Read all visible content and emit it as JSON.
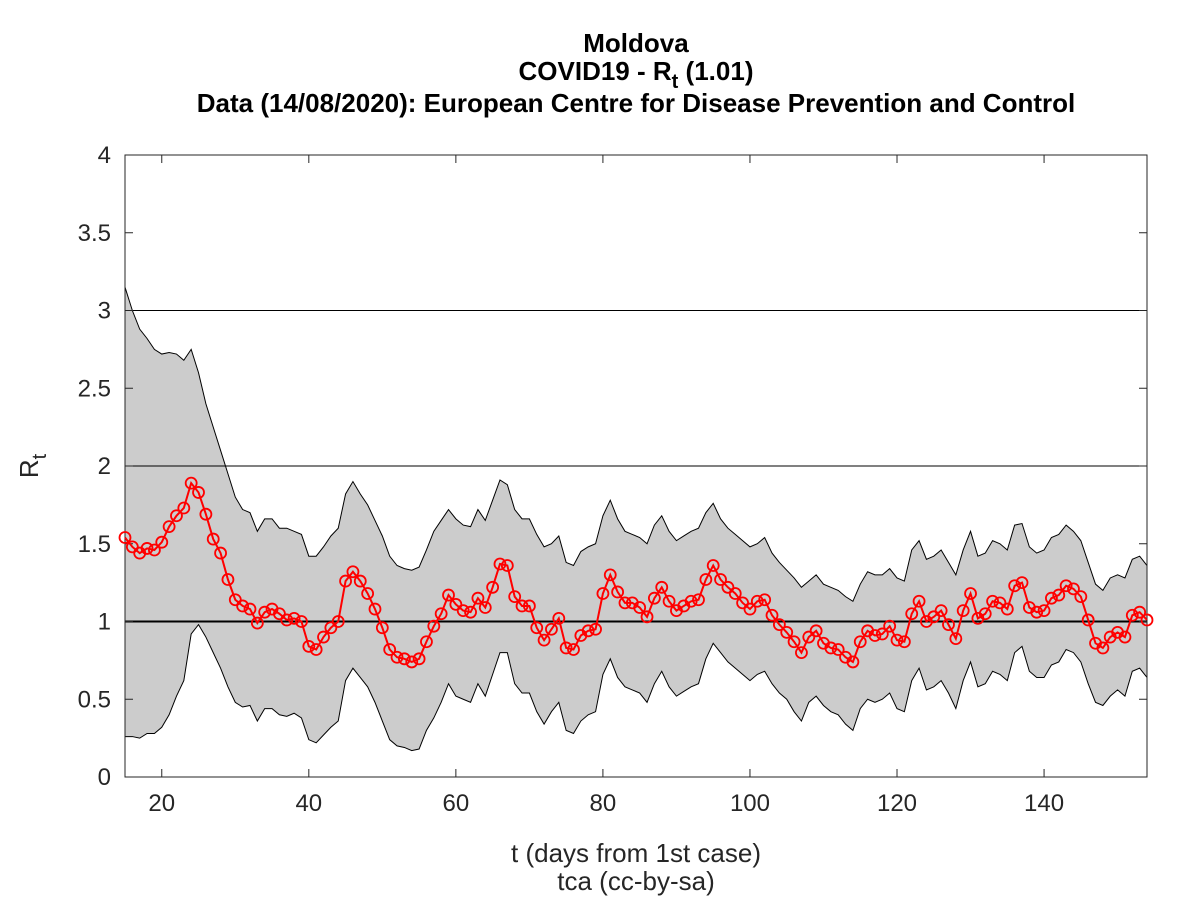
{
  "chart_data": {
    "type": "line",
    "title": "Moldova",
    "subtitle_prefix": "COVID19 - R",
    "subtitle_sub": "t",
    "subtitle_suffix": " (1.01)",
    "source_line": "Data (14/08/2020): European Centre for Disease Prevention and Control",
    "xlabel": "t (days from 1st case)",
    "credit": "tca (cc-by-sa)",
    "ylabel_main": "R",
    "ylabel_sub": "t",
    "xlim": [
      15,
      154
    ],
    "ylim": [
      0,
      4
    ],
    "xticks": [
      20,
      40,
      60,
      80,
      100,
      120,
      140
    ],
    "yticks": [
      0,
      0.5,
      1,
      1.5,
      2,
      2.5,
      3,
      3.5,
      4
    ],
    "ytick_labels": [
      "0",
      "0.5",
      "1",
      "1.5",
      "2",
      "2.5",
      "3",
      "3.5",
      "4"
    ],
    "reference_lines": [
      1,
      2,
      3
    ],
    "grid": false,
    "x_start": 15,
    "series": [
      {
        "values": [
          1.54,
          1.48,
          1.44,
          1.47,
          1.46,
          1.51,
          1.61,
          1.68,
          1.73,
          1.89,
          1.83,
          1.69,
          1.53,
          1.44,
          1.27,
          1.14,
          1.1,
          1.08,
          0.99,
          1.06,
          1.08,
          1.05,
          1.01,
          1.02,
          1.0,
          0.84,
          0.82,
          0.9,
          0.96,
          1.0,
          1.26,
          1.32,
          1.26,
          1.18,
          1.08,
          0.96,
          0.82,
          0.77,
          0.76,
          0.74,
          0.76,
          0.87,
          0.97,
          1.05,
          1.17,
          1.11,
          1.07,
          1.06,
          1.15,
          1.09,
          1.22,
          1.37,
          1.36,
          1.16,
          1.1,
          1.1,
          0.96,
          0.88,
          0.95,
          1.02,
          0.83,
          0.82,
          0.91,
          0.94,
          0.95,
          1.18,
          1.3,
          1.19,
          1.12,
          1.12,
          1.09,
          1.03,
          1.15,
          1.22,
          1.13,
          1.07,
          1.1,
          1.13,
          1.14,
          1.27,
          1.36,
          1.27,
          1.22,
          1.18,
          1.12,
          1.08,
          1.13,
          1.14,
          1.04,
          0.98,
          0.93,
          0.87,
          0.8,
          0.9,
          0.94,
          0.86,
          0.83,
          0.82,
          0.77,
          0.74,
          0.87,
          0.94,
          0.91,
          0.92,
          0.97,
          0.88,
          0.87,
          1.05,
          1.13,
          1.0,
          1.03,
          1.07,
          0.98,
          0.89,
          1.07,
          1.18,
          1.02,
          1.05,
          1.13,
          1.12,
          1.08,
          1.23,
          1.25,
          1.09,
          1.06,
          1.07,
          1.15,
          1.17,
          1.23,
          1.21,
          1.16,
          1.01,
          0.86,
          0.83,
          0.9,
          0.93,
          0.9,
          1.04,
          1.06,
          1.01
        ]
      }
    ],
    "band_upper": [
      3.15,
      3.0,
      2.88,
      2.82,
      2.75,
      2.72,
      2.73,
      2.72,
      2.68,
      2.75,
      2.6,
      2.4,
      2.25,
      2.1,
      1.95,
      1.8,
      1.72,
      1.7,
      1.58,
      1.66,
      1.66,
      1.6,
      1.6,
      1.58,
      1.56,
      1.42,
      1.42,
      1.48,
      1.55,
      1.6,
      1.82,
      1.9,
      1.82,
      1.75,
      1.65,
      1.55,
      1.42,
      1.36,
      1.34,
      1.33,
      1.35,
      1.46,
      1.58,
      1.65,
      1.72,
      1.66,
      1.62,
      1.61,
      1.72,
      1.65,
      1.78,
      1.91,
      1.88,
      1.72,
      1.66,
      1.66,
      1.56,
      1.48,
      1.5,
      1.55,
      1.38,
      1.36,
      1.45,
      1.48,
      1.5,
      1.68,
      1.78,
      1.66,
      1.58,
      1.56,
      1.54,
      1.5,
      1.62,
      1.68,
      1.58,
      1.52,
      1.55,
      1.58,
      1.6,
      1.7,
      1.76,
      1.66,
      1.6,
      1.56,
      1.52,
      1.48,
      1.5,
      1.54,
      1.44,
      1.38,
      1.33,
      1.28,
      1.22,
      1.26,
      1.3,
      1.24,
      1.22,
      1.2,
      1.16,
      1.13,
      1.24,
      1.32,
      1.3,
      1.3,
      1.34,
      1.28,
      1.26,
      1.46,
      1.52,
      1.4,
      1.42,
      1.46,
      1.38,
      1.3,
      1.46,
      1.58,
      1.42,
      1.44,
      1.52,
      1.5,
      1.46,
      1.62,
      1.63,
      1.48,
      1.44,
      1.46,
      1.54,
      1.56,
      1.62,
      1.58,
      1.52,
      1.38,
      1.24,
      1.2,
      1.28,
      1.3,
      1.28,
      1.4,
      1.42,
      1.36
    ],
    "band_lower": [
      0.26,
      0.26,
      0.25,
      0.28,
      0.28,
      0.32,
      0.4,
      0.52,
      0.62,
      0.92,
      0.98,
      0.9,
      0.8,
      0.7,
      0.58,
      0.48,
      0.45,
      0.46,
      0.36,
      0.44,
      0.44,
      0.4,
      0.39,
      0.41,
      0.38,
      0.24,
      0.22,
      0.27,
      0.32,
      0.36,
      0.62,
      0.7,
      0.64,
      0.58,
      0.48,
      0.36,
      0.24,
      0.2,
      0.19,
      0.17,
      0.18,
      0.3,
      0.38,
      0.48,
      0.6,
      0.52,
      0.5,
      0.48,
      0.6,
      0.52,
      0.66,
      0.8,
      0.8,
      0.6,
      0.54,
      0.54,
      0.42,
      0.34,
      0.42,
      0.48,
      0.3,
      0.28,
      0.36,
      0.4,
      0.42,
      0.66,
      0.76,
      0.64,
      0.58,
      0.56,
      0.54,
      0.48,
      0.6,
      0.68,
      0.58,
      0.52,
      0.55,
      0.58,
      0.6,
      0.76,
      0.86,
      0.8,
      0.74,
      0.7,
      0.66,
      0.62,
      0.66,
      0.68,
      0.6,
      0.54,
      0.5,
      0.42,
      0.36,
      0.48,
      0.52,
      0.46,
      0.42,
      0.4,
      0.34,
      0.3,
      0.44,
      0.5,
      0.48,
      0.5,
      0.54,
      0.44,
      0.42,
      0.62,
      0.7,
      0.56,
      0.58,
      0.62,
      0.54,
      0.44,
      0.62,
      0.74,
      0.58,
      0.6,
      0.68,
      0.66,
      0.62,
      0.8,
      0.84,
      0.68,
      0.64,
      0.64,
      0.72,
      0.74,
      0.82,
      0.8,
      0.74,
      0.6,
      0.48,
      0.46,
      0.52,
      0.56,
      0.52,
      0.68,
      0.7,
      0.64
    ],
    "colors": {
      "line": "#ff0000",
      "band_fill": "#cccccc",
      "band_edge": "#000000",
      "reference": "#000000"
    }
  }
}
